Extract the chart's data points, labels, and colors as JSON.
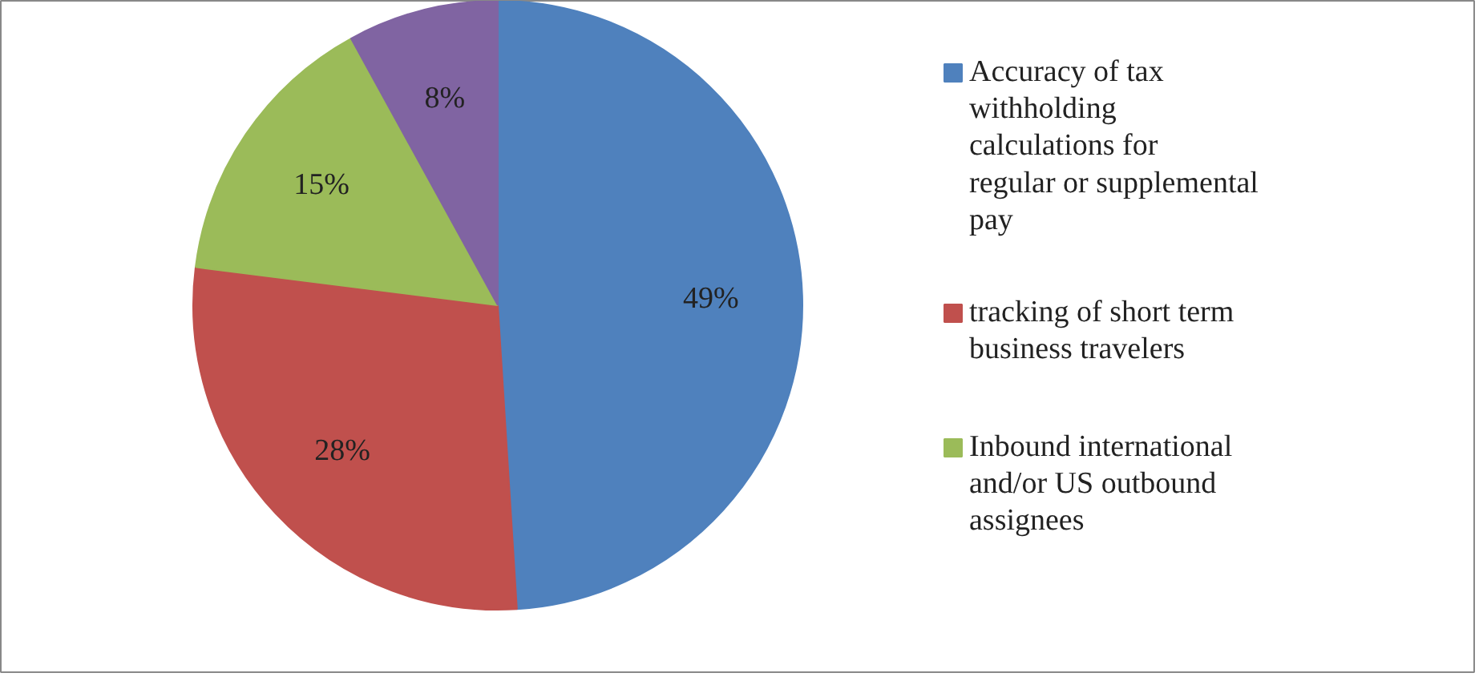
{
  "chart_data": {
    "type": "pie",
    "categories": [
      "Accuracy of tax withholding calculations for regular or supplemental pay",
      "tracking of short term business travelers",
      "Inbound international and/or US outbound assignees",
      null
    ],
    "values": [
      49,
      28,
      15,
      8
    ],
    "colors": [
      "#4f81bd",
      "#c0504d",
      "#9bbb59",
      "#8064a2"
    ],
    "value_labels": [
      "49%",
      "28%",
      "15%",
      "8%"
    ],
    "legend": "right"
  }
}
